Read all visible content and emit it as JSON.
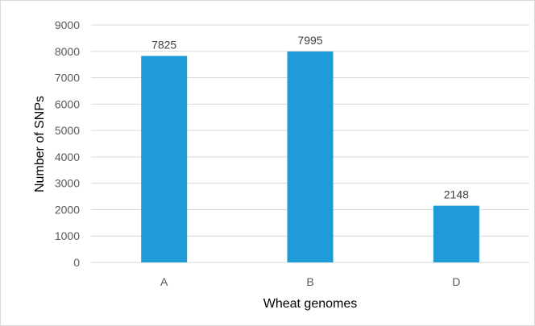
{
  "chart_data": {
    "type": "bar",
    "categories": [
      "A",
      "B",
      "D"
    ],
    "values": [
      7825,
      7995,
      2148
    ],
    "data_labels": [
      "7825",
      "7995",
      "2148"
    ],
    "title": "",
    "xlabel": "Wheat genomes",
    "ylabel": "Number of SNPs",
    "ylim": [
      0,
      9000
    ],
    "yticks": [
      "0",
      "1000",
      "2000",
      "3000",
      "4000",
      "5000",
      "6000",
      "7000",
      "8000",
      "9000"
    ],
    "grid": true,
    "legend": "none",
    "bar_color": "#1f9bd7",
    "grid_color": "#d9d9d9"
  }
}
